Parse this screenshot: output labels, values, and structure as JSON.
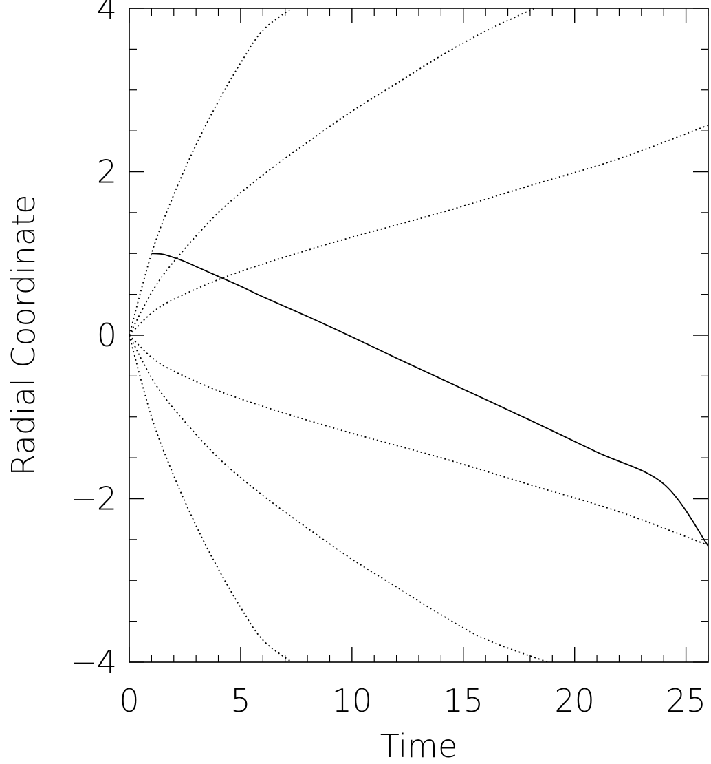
{
  "chart_data": {
    "type": "line",
    "title": "",
    "xlabel": "Time",
    "ylabel": "Radial Coordinate",
    "xlim": [
      0,
      26
    ],
    "ylim": [
      -4,
      4
    ],
    "x_ticks": [
      0,
      5,
      10,
      15,
      20,
      25
    ],
    "x_tick_labels": [
      "0",
      "5",
      "10",
      "15",
      "20",
      "25"
    ],
    "y_ticks": [
      -4,
      -2,
      0,
      2,
      4
    ],
    "y_tick_labels": [
      "−4",
      "−2",
      "0",
      "2",
      "4"
    ],
    "grid": false,
    "legend": "none",
    "series": [
      {
        "style": "solid",
        "color": "#000000",
        "x": [
          1.0,
          1.5,
          2.0,
          2.5,
          3.0,
          4.0,
          5.0,
          6.0,
          8.0,
          10.0,
          12.0,
          15.0,
          18.0,
          21.0,
          24.0,
          26.0
        ],
        "y": [
          1.0,
          0.99,
          0.95,
          0.9,
          0.84,
          0.72,
          0.6,
          0.47,
          0.23,
          -0.02,
          -0.28,
          -0.66,
          -1.04,
          -1.43,
          -1.82,
          -2.58
        ]
      },
      {
        "style": "dotted",
        "color": "#000000",
        "x": [
          0.0,
          1.0,
          2.0,
          3.0,
          4.0,
          5.0,
          6.0,
          7.3
        ],
        "y": [
          0.0,
          1.0,
          1.72,
          2.33,
          2.86,
          3.33,
          3.73,
          4.0
        ]
      },
      {
        "style": "dotted",
        "color": "#000000",
        "x": [
          0.0,
          1.0,
          2.0,
          4.0,
          6.0,
          8.0,
          10.0,
          12.0,
          14.0,
          16.0,
          18.2
        ],
        "y": [
          0.0,
          0.52,
          0.9,
          1.5,
          1.96,
          2.36,
          2.74,
          3.08,
          3.42,
          3.72,
          4.0
        ]
      },
      {
        "style": "dotted",
        "color": "#000000",
        "x": [
          0.0,
          1.0,
          2.0,
          4.0,
          6.0,
          8.0,
          10.0,
          14.0,
          18.0,
          22.0,
          26.0
        ],
        "y": [
          0.0,
          0.27,
          0.44,
          0.68,
          0.87,
          1.04,
          1.2,
          1.5,
          1.83,
          2.16,
          2.57
        ]
      },
      {
        "style": "dotted",
        "color": "#000000",
        "x": [
          0.0,
          1.0,
          2.0,
          4.0,
          6.0,
          8.0,
          10.0,
          14.0,
          18.0,
          22.0,
          26.0
        ],
        "y": [
          0.0,
          -0.27,
          -0.44,
          -0.68,
          -0.87,
          -1.04,
          -1.2,
          -1.5,
          -1.83,
          -2.16,
          -2.57
        ]
      },
      {
        "style": "dotted",
        "color": "#000000",
        "x": [
          0.0,
          1.0,
          2.0,
          4.0,
          6.0,
          8.0,
          10.0,
          12.0,
          14.0,
          16.0,
          18.8
        ],
        "y": [
          0.0,
          -0.52,
          -0.9,
          -1.5,
          -1.96,
          -2.36,
          -2.74,
          -3.08,
          -3.42,
          -3.72,
          -4.0
        ]
      },
      {
        "style": "dotted",
        "color": "#000000",
        "x": [
          0.0,
          1.0,
          2.0,
          3.0,
          4.0,
          5.0,
          6.0,
          7.3
        ],
        "y": [
          0.0,
          -1.0,
          -1.72,
          -2.33,
          -2.86,
          -3.33,
          -3.73,
          -4.0
        ]
      }
    ]
  }
}
